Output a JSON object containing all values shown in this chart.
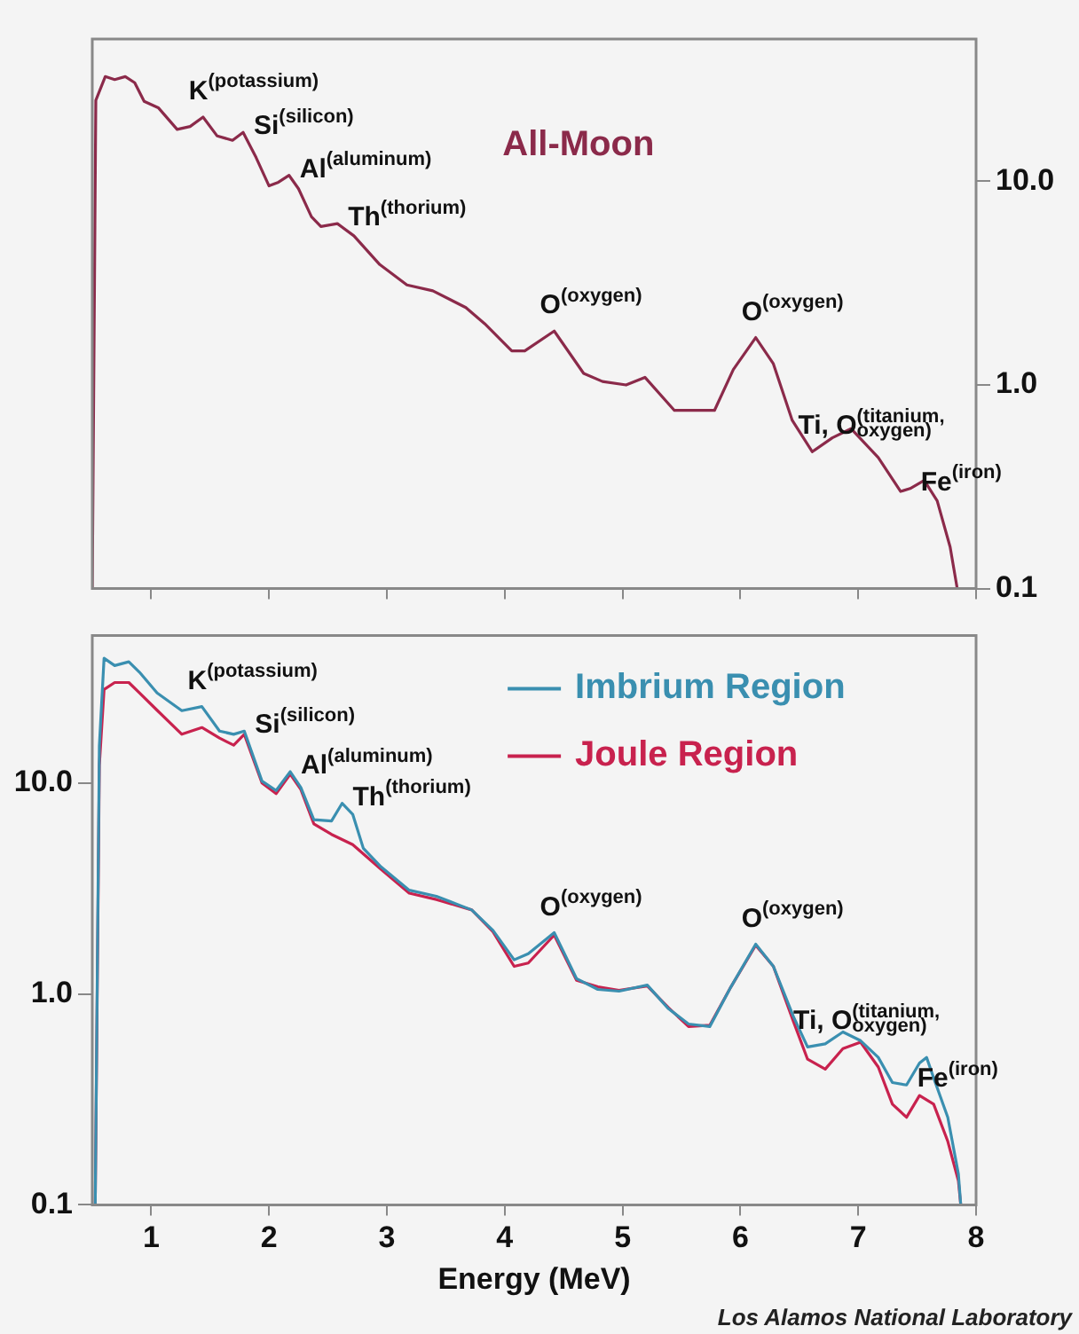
{
  "chart_data": [
    {
      "type": "line",
      "log": "y",
      "legend": false,
      "tick_labels": "y",
      "xlim": [
        0.5,
        8
      ],
      "xticks": [
        1,
        2,
        3,
        4,
        5,
        6,
        7,
        8
      ],
      "ylim": [
        0.1,
        50
      ],
      "yticks": [
        {
          "value": 0.1,
          "label": "0.1"
        },
        {
          "value": 1,
          "label": "1.0"
        },
        {
          "value": 10,
          "label": "10.0"
        }
      ],
      "grid": false,
      "series": [
        {
          "name": "All-Moon",
          "color": "#8b2a4a",
          "x": [
            0.5,
            0.53,
            0.61,
            0.69,
            0.78,
            0.86,
            0.94,
            1.06,
            1.22,
            1.33,
            1.44,
            1.56,
            1.69,
            1.78,
            1.89,
            2.0,
            2.08,
            2.17,
            2.25,
            2.36,
            2.44,
            2.58,
            2.72,
            2.94,
            3.17,
            3.39,
            3.67,
            3.83,
            4.06,
            4.17,
            4.42,
            4.67,
            4.83,
            5.03,
            5.19,
            5.44,
            5.61,
            5.78,
            5.94,
            6.13,
            6.28,
            6.44,
            6.61,
            6.78,
            6.94,
            7.17,
            7.36,
            7.44,
            7.56,
            7.67,
            7.78,
            7.84
          ],
          "values": [
            0.1,
            25,
            32.7,
            31.6,
            32.7,
            30.5,
            24.7,
            23,
            18,
            18.6,
            20.7,
            16.7,
            15.9,
            17.4,
            13.1,
            9.5,
            9.9,
            10.7,
            9.2,
            6.7,
            6.0,
            6.2,
            5.4,
            3.9,
            3.1,
            2.9,
            2.4,
            2.0,
            1.47,
            1.47,
            1.84,
            1.14,
            1.04,
            1.0,
            1.09,
            0.75,
            0.75,
            0.75,
            1.19,
            1.71,
            1.27,
            0.67,
            0.47,
            0.55,
            0.61,
            0.44,
            0.3,
            0.31,
            0.34,
            0.27,
            0.16,
            0.1
          ]
        }
      ],
      "annotations": [
        {
          "text": "K$^{(potassium)}$",
          "x": 1.44,
          "y": 20.7
        },
        {
          "text": "Si$^{(silicon)}$",
          "x": 1.78,
          "y": 17.4
        },
        {
          "text": "Al$^{(aluminum)}$",
          "x": 2.17,
          "y": 10.7
        },
        {
          "text": "Th$^{(thorium)}$",
          "x": 2.58,
          "y": 6.2
        },
        {
          "text": "O$^{(oxygen)}$",
          "x": 4.42,
          "y": 1.84
        },
        {
          "text": "O$^{(oxygen)}$",
          "x": 6.13,
          "y": 1.71
        },
        {
          "text": "Ti, O$^{(titanium,}$$_{oxygen)}$",
          "x": 6.61,
          "y": 0.47
        },
        {
          "text": "Fe$^{(iron)}$",
          "x": 7.44,
          "y": 0.31
        }
      ]
    },
    {
      "type": "line",
      "log": "y",
      "legend": "top right",
      "xlabel": "Energy (MeV)",
      "xlim": [
        0.5,
        8
      ],
      "xticks": [
        1,
        2,
        3,
        4,
        5,
        6,
        7,
        8
      ],
      "ylim": [
        0.1,
        50
      ],
      "yticks": [
        {
          "value": 0.1,
          "label": "0.1"
        },
        {
          "value": 1,
          "label": "1.0"
        },
        {
          "value": 10,
          "label": "10.0"
        }
      ],
      "grid": false,
      "series": [
        {
          "name": "Imbrium Region",
          "color": "#3a8fb0",
          "x": [
            0.525,
            0.56,
            0.6,
            0.69,
            0.81,
            0.9,
            1.05,
            1.26,
            1.43,
            1.58,
            1.7,
            1.79,
            1.94,
            2.06,
            2.18,
            2.27,
            2.38,
            2.53,
            2.62,
            2.71,
            2.8,
            2.95,
            3.19,
            3.42,
            3.72,
            3.9,
            4.08,
            4.2,
            4.42,
            4.61,
            4.79,
            4.97,
            5.21,
            5.39,
            5.56,
            5.74,
            5.92,
            6.13,
            6.28,
            6.45,
            6.57,
            6.72,
            6.87,
            7.02,
            7.17,
            7.29,
            7.41,
            7.52,
            7.58,
            7.64,
            7.76,
            7.85,
            7.87
          ],
          "values": [
            0.1,
            15,
            39,
            36,
            37.5,
            33.5,
            26.7,
            22,
            23,
            17.6,
            17,
            17.6,
            10.2,
            9.2,
            11.3,
            9.5,
            6.7,
            6.6,
            8.0,
            7.1,
            4.9,
            4.0,
            3.1,
            2.9,
            2.5,
            2.0,
            1.45,
            1.55,
            1.95,
            1.18,
            1.05,
            1.03,
            1.1,
            0.85,
            0.72,
            0.7,
            1.08,
            1.72,
            1.35,
            0.78,
            0.56,
            0.58,
            0.66,
            0.6,
            0.5,
            0.38,
            0.37,
            0.47,
            0.5,
            0.4,
            0.26,
            0.14,
            0.1
          ]
        },
        {
          "name": "Joule Region",
          "color": "#c8224e",
          "x": [
            0.525,
            0.56,
            0.6,
            0.69,
            0.81,
            0.9,
            1.05,
            1.26,
            1.43,
            1.58,
            1.7,
            1.79,
            1.94,
            2.06,
            2.18,
            2.27,
            2.38,
            2.53,
            2.71,
            2.95,
            3.19,
            3.42,
            3.72,
            3.9,
            4.08,
            4.2,
            4.42,
            4.61,
            4.79,
            4.97,
            5.21,
            5.39,
            5.56,
            5.74,
            5.92,
            6.13,
            6.28,
            6.45,
            6.57,
            6.72,
            6.87,
            7.02,
            7.17,
            7.29,
            7.41,
            7.52,
            7.64,
            7.76,
            7.85,
            7.87
          ],
          "values": [
            0.1,
            12.1,
            27.7,
            29.9,
            29.9,
            26.7,
            22.1,
            17,
            18.3,
            16.3,
            15.1,
            17,
            10,
            8.9,
            11,
            9.3,
            6.4,
            5.7,
            5.1,
            3.9,
            3.0,
            2.8,
            2.5,
            1.97,
            1.35,
            1.4,
            1.9,
            1.16,
            1.08,
            1.04,
            1.09,
            0.86,
            0.7,
            0.71,
            1.08,
            1.7,
            1.35,
            0.74,
            0.49,
            0.44,
            0.55,
            0.59,
            0.45,
            0.3,
            0.26,
            0.33,
            0.3,
            0.2,
            0.13,
            0.1
          ]
        }
      ],
      "annotations": [
        {
          "text": "K$^{(potassium)}$",
          "x": 1.43,
          "y": 23
        },
        {
          "text": "Si$^{(silicon)}$",
          "x": 1.79,
          "y": 17.6
        },
        {
          "text": "Al$^{(aluminum)}$",
          "x": 2.18,
          "y": 11.3
        },
        {
          "text": "Th$^{(thorium)}$",
          "x": 2.62,
          "y": 8.0
        },
        {
          "text": "O$^{(oxygen)}$",
          "x": 4.42,
          "y": 1.95
        },
        {
          "text": "O$^{(oxygen)}$",
          "x": 6.13,
          "y": 1.72
        },
        {
          "text": "Ti, O$^{(titanium,}$$_{oxygen)}$",
          "x": 6.57,
          "y": 0.56
        },
        {
          "text": "Fe$^{(iron)}$",
          "x": 7.41,
          "y": 0.37
        },
        "Los Alamos National Laboratory"
      ]
    }
  ]
}
